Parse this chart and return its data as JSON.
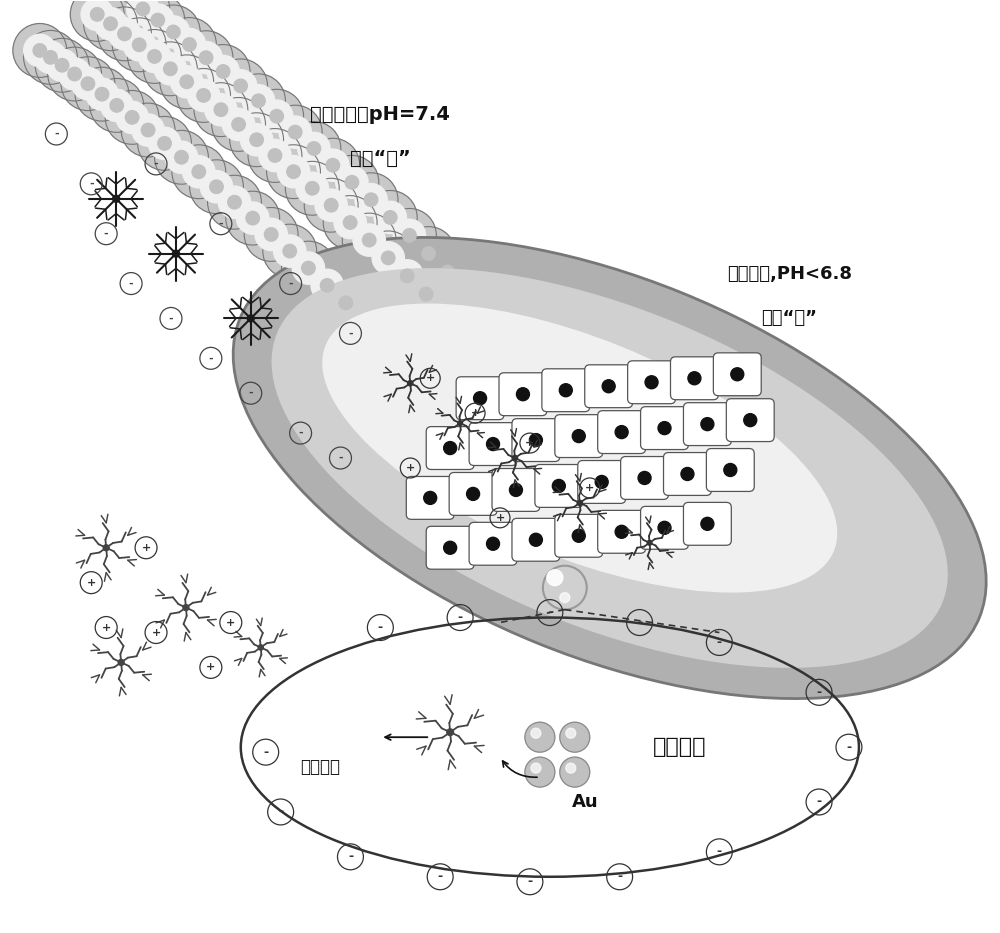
{
  "bg_color": "#ffffff",
  "text_normal_tissue_line1": "正常组织，pH=7.4",
  "text_normal_tissue_line2": "荧光“关”",
  "text_tumor_tissue_line1": "肿瘤组织,PH<6.8",
  "text_tumor_tissue_line2": "荧光“开”",
  "text_tumor_cell": "肿瘤细胞",
  "text_probe": "探针分子",
  "text_au": "Au",
  "label_color": "#111111"
}
